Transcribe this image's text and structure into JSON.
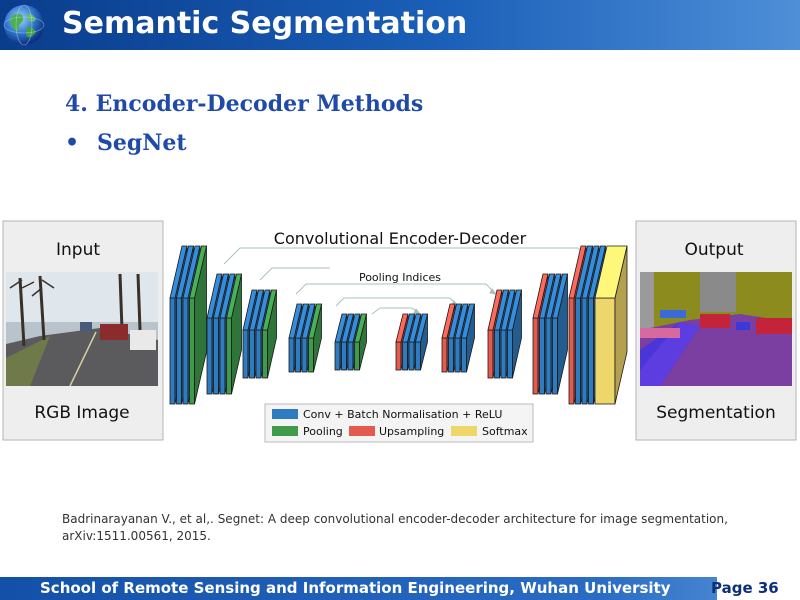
{
  "slide": {
    "title": "Semantic Segmentation",
    "section": "4. Encoder-Decoder Methods",
    "bullet_symbol": "•",
    "bullet": "SegNet",
    "citation_line1": "Badrinarayanan V., et al,.  Segnet: A deep convolutional encoder-decoder architecture for image segmentation,",
    "citation_line2": "arXiv:1511.00561, 2015.",
    "footer": "School of Remote Sensing and Information Engineering, Wuhan University",
    "page": "Page 36"
  },
  "diagram": {
    "title": "Convolutional Encoder-Decoder",
    "pooling_indices": "Pooling Indices",
    "input_title": "Input",
    "input_caption": "RGB Image",
    "output_title": "Output",
    "output_caption": "Segmentation",
    "legend": {
      "conv": "Conv + Batch Normalisation + ReLU",
      "pooling": "Pooling",
      "upsampling": "Upsampling",
      "softmax": "Softmax"
    },
    "colors": {
      "conv": "#2e7bbf",
      "pooling": "#3f9a4a",
      "upsampling": "#e35b4f",
      "softmax": "#eed76a",
      "panel": "#eeeeee",
      "title_blue": "#1f4aa8"
    },
    "input_image_icon": "street-scene-photo",
    "output_image_icon": "segmentation-map"
  }
}
